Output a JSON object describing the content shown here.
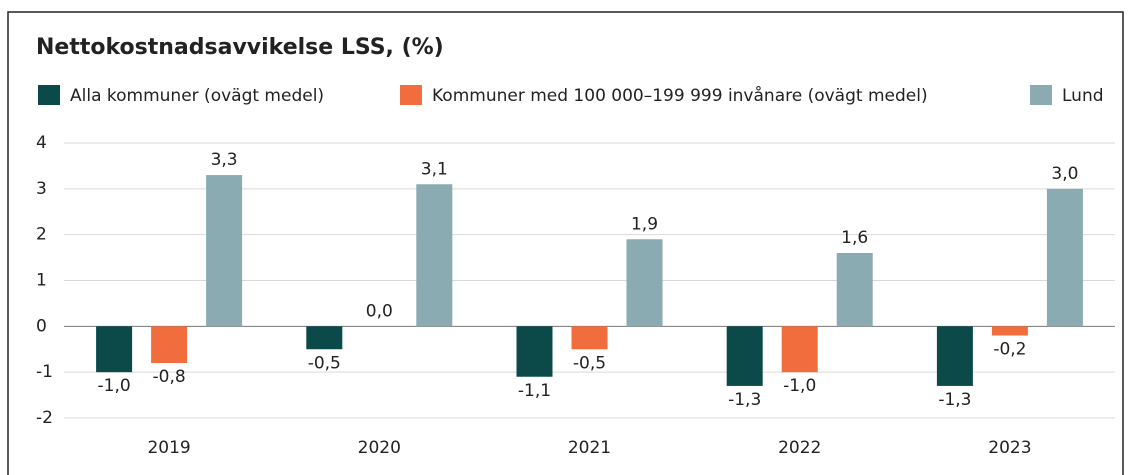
{
  "chart_data": {
    "type": "bar",
    "title": "Nettokostnadsavvikelse LSS, (%)",
    "categories": [
      "2019",
      "2020",
      "2021",
      "2022",
      "2023"
    ],
    "series": [
      {
        "name": "Alla kommuner (ovägt medel)",
        "color": "#0b4a48",
        "values": [
          -1.0,
          -0.5,
          -1.1,
          -1.3,
          -1.3
        ],
        "value_labels": [
          "-1,0",
          "-0,5",
          "-1,1",
          "-1,3",
          "-1,3"
        ]
      },
      {
        "name": "Kommuner med 100 000–199 999 invånare (ovägt medel)",
        "color": "#f26d3d",
        "values": [
          -0.8,
          0.0,
          -0.5,
          -1.0,
          -0.2
        ],
        "value_labels": [
          "-0,8",
          "0,0",
          "-0,5",
          "-1,0",
          "-0,2"
        ]
      },
      {
        "name": "Lund",
        "color": "#8aabb1",
        "values": [
          3.3,
          3.1,
          1.9,
          1.6,
          3.0
        ],
        "value_labels": [
          "3,3",
          "3,1",
          "1,9",
          "1,6",
          "3,0"
        ]
      }
    ],
    "ylim": [
      -2,
      4
    ],
    "yticks": [
      -2,
      -1,
      0,
      1,
      2,
      3,
      4
    ],
    "grid": true,
    "legend": "top"
  }
}
